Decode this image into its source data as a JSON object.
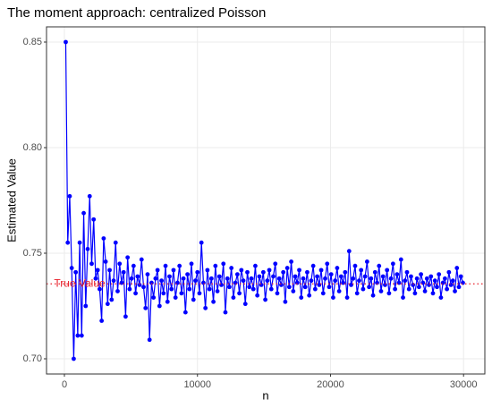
{
  "chart_data": {
    "type": "line",
    "title": "The moment approach: centralized Poisson",
    "x_label": "n",
    "y_label": "Estimated Value",
    "xlim": [
      -1345,
      31600
    ],
    "ylim": [
      0.6928,
      0.8572
    ],
    "xticks": [
      0,
      10000,
      20000,
      30000
    ],
    "yticks": [
      {
        "value": 0.7,
        "label": "0.70"
      },
      {
        "value": 0.75,
        "label": "0.75"
      },
      {
        "value": 0.8,
        "label": "0.80"
      },
      {
        "value": 0.85,
        "label": "0.85"
      }
    ],
    "grid": true,
    "reference_line": {
      "value": 0.7355,
      "label": "True Value",
      "color": "#e8202a"
    },
    "series": [
      {
        "color": "#0000ff",
        "x": [
          100,
          250,
          400,
          550,
          700,
          850,
          1000,
          1150,
          1300,
          1450,
          1600,
          1750,
          1900,
          2050,
          2200,
          2350,
          2500,
          2650,
          2800,
          2950,
          3100,
          3250,
          3400,
          3550,
          3700,
          3850,
          4000,
          4150,
          4300,
          4450,
          4600,
          4750,
          4900,
          5050,
          5200,
          5350,
          5500,
          5650,
          5800,
          5950,
          6100,
          6250,
          6400,
          6550,
          6700,
          6850,
          7000,
          7150,
          7300,
          7450,
          7600,
          7750,
          7900,
          8050,
          8200,
          8350,
          8500,
          8650,
          8800,
          8950,
          9100,
          9250,
          9400,
          9550,
          9700,
          9850,
          10000,
          10150,
          10300,
          10450,
          10600,
          10750,
          10900,
          11050,
          11200,
          11350,
          11500,
          11650,
          11800,
          11950,
          12100,
          12250,
          12400,
          12550,
          12700,
          12850,
          13000,
          13150,
          13300,
          13450,
          13600,
          13750,
          13900,
          14050,
          14200,
          14350,
          14500,
          14650,
          14800,
          14950,
          15100,
          15250,
          15400,
          15550,
          15700,
          15850,
          16000,
          16150,
          16300,
          16450,
          16600,
          16750,
          16900,
          17050,
          17200,
          17350,
          17500,
          17650,
          17800,
          17950,
          18100,
          18250,
          18400,
          18550,
          18700,
          18850,
          19000,
          19150,
          19300,
          19450,
          19600,
          19750,
          19900,
          20050,
          20200,
          20350,
          20500,
          20650,
          20800,
          20950,
          21100,
          21250,
          21400,
          21550,
          21700,
          21850,
          22000,
          22150,
          22300,
          22450,
          22600,
          22750,
          22900,
          23050,
          23200,
          23350,
          23500,
          23650,
          23800,
          23950,
          24100,
          24250,
          24400,
          24550,
          24700,
          24850,
          25000,
          25150,
          25300,
          25450,
          25600,
          25750,
          25900,
          26050,
          26200,
          26350,
          26500,
          26650,
          26800,
          26950,
          27100,
          27250,
          27400,
          27550,
          27700,
          27850,
          28000,
          28150,
          28300,
          28450,
          28600,
          28750,
          28900,
          29050,
          29200,
          29350,
          29500,
          29650,
          29800,
          29950
        ],
        "values": [
          0.85,
          0.755,
          0.777,
          0.743,
          0.7,
          0.741,
          0.711,
          0.755,
          0.711,
          0.769,
          0.725,
          0.752,
          0.777,
          0.745,
          0.766,
          0.738,
          0.742,
          0.733,
          0.718,
          0.757,
          0.746,
          0.726,
          0.742,
          0.728,
          0.737,
          0.755,
          0.732,
          0.745,
          0.736,
          0.741,
          0.72,
          0.748,
          0.733,
          0.738,
          0.744,
          0.731,
          0.739,
          0.735,
          0.747,
          0.734,
          0.724,
          0.74,
          0.709,
          0.736,
          0.729,
          0.738,
          0.742,
          0.725,
          0.737,
          0.731,
          0.744,
          0.727,
          0.739,
          0.733,
          0.742,
          0.729,
          0.736,
          0.744,
          0.731,
          0.738,
          0.722,
          0.74,
          0.733,
          0.745,
          0.728,
          0.737,
          0.741,
          0.731,
          0.755,
          0.736,
          0.724,
          0.742,
          0.733,
          0.738,
          0.727,
          0.744,
          0.732,
          0.739,
          0.735,
          0.745,
          0.722,
          0.738,
          0.734,
          0.743,
          0.729,
          0.736,
          0.74,
          0.731,
          0.742,
          0.737,
          0.726,
          0.741,
          0.734,
          0.738,
          0.733,
          0.744,
          0.73,
          0.739,
          0.735,
          0.741,
          0.728,
          0.737,
          0.742,
          0.733,
          0.739,
          0.745,
          0.731,
          0.738,
          0.735,
          0.741,
          0.727,
          0.743,
          0.734,
          0.746,
          0.732,
          0.739,
          0.736,
          0.742,
          0.729,
          0.738,
          0.734,
          0.741,
          0.73,
          0.737,
          0.744,
          0.733,
          0.739,
          0.735,
          0.742,
          0.731,
          0.738,
          0.745,
          0.734,
          0.74,
          0.729,
          0.737,
          0.743,
          0.732,
          0.739,
          0.736,
          0.741,
          0.729,
          0.751,
          0.735,
          0.738,
          0.744,
          0.731,
          0.737,
          0.742,
          0.733,
          0.739,
          0.746,
          0.734,
          0.738,
          0.73,
          0.741,
          0.736,
          0.744,
          0.732,
          0.739,
          0.735,
          0.742,
          0.731,
          0.738,
          0.745,
          0.733,
          0.74,
          0.736,
          0.747,
          0.729,
          0.737,
          0.741,
          0.733,
          0.739,
          0.735,
          0.731,
          0.738,
          0.734,
          0.74,
          0.736,
          0.732,
          0.738,
          0.735,
          0.739,
          0.731,
          0.737,
          0.734,
          0.74,
          0.729,
          0.736,
          0.738,
          0.733,
          0.741,
          0.735,
          0.737,
          0.732,
          0.743,
          0.734,
          0.739,
          0.736
        ]
      }
    ]
  }
}
